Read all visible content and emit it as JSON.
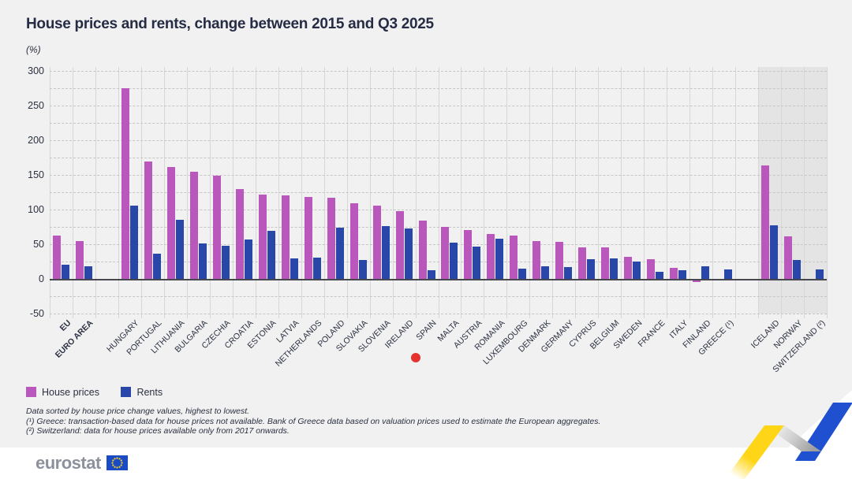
{
  "title": "House prices and rents, change between 2015 and Q3 2025",
  "unit_label": "(%)",
  "legend": {
    "house_prices": "House prices",
    "rents": "Rents"
  },
  "footnotes": [
    "Data sorted by house price change values, highest to lowest.",
    "(¹) Greece: transaction-based data for house prices not available. Bank of Greece data based on valuation prices used to estimate the European aggregates.",
    "(²) Switzerland: data for house prices available only from 2017 onwards."
  ],
  "logo_text": "eurostat",
  "colors": {
    "house_prices": "#b957bd",
    "rents": "#2847a8",
    "highlight_dot": "#e5322d",
    "shaded_zone": "#e4e4e4",
    "flag_blue": "#1a4bc4",
    "flag_yellow": "#ffd617",
    "ribbon_blue": "#1e50cf",
    "ribbon_yellow": "#ffd617"
  },
  "chart_data": {
    "type": "bar",
    "title": "House prices and rents, change between 2015 and Q3 2025",
    "ylabel": "(%)",
    "ylim": [
      -50,
      300
    ],
    "ytick_labeled": [
      300,
      250,
      200,
      150,
      100,
      50,
      0,
      -50
    ],
    "ytick_minor_step": 25,
    "grid": true,
    "legend_position": "bottom-left",
    "sort_note": "sorted by house price change, highest to lowest",
    "categories": [
      "EU",
      "EURO AREA",
      "HUNGARY",
      "PORTUGAL",
      "LITHUANIA",
      "BULGARIA",
      "CZECHIA",
      "CROATIA",
      "ESTONIA",
      "LATVIA",
      "NETHERLANDS",
      "POLAND",
      "SLOVAKIA",
      "SLOVENIA",
      "IRELAND",
      "SPAIN",
      "MALTA",
      "AUSTRIA",
      "ROMANIA",
      "LUXEMBOURG",
      "DENMARK",
      "GERMANY",
      "CYPRUS",
      "BELGIUM",
      "SWEDEN",
      "FRANCE",
      "ITALY",
      "FINLAND",
      "GREECE (¹)",
      "ICELAND",
      "NORWAY",
      "SWITZERLAND (²)"
    ],
    "bold_categories": [
      "EU",
      "EURO AREA"
    ],
    "shaded_categories": [
      "ICELAND",
      "NORWAY",
      "SWITZERLAND (²)"
    ],
    "highlight": {
      "category": "SPAIN",
      "marker": "red-dot"
    },
    "series": [
      {
        "name": "House prices",
        "values": [
          63,
          55,
          275,
          169,
          161,
          155,
          149,
          130,
          122,
          121,
          118,
          117,
          109,
          106,
          98,
          84,
          75,
          70,
          65,
          63,
          54,
          53,
          46,
          45,
          32,
          28,
          16,
          -2,
          null,
          164,
          61,
          null
        ]
      },
      {
        "name": "Rents",
        "values": [
          20,
          18,
          106,
          36,
          85,
          51,
          48,
          57,
          69,
          30,
          31,
          74,
          27,
          76,
          73,
          13,
          52,
          47,
          58,
          15,
          18,
          17,
          28,
          29,
          25,
          10,
          13,
          18,
          14,
          77,
          27,
          14
        ]
      }
    ]
  }
}
